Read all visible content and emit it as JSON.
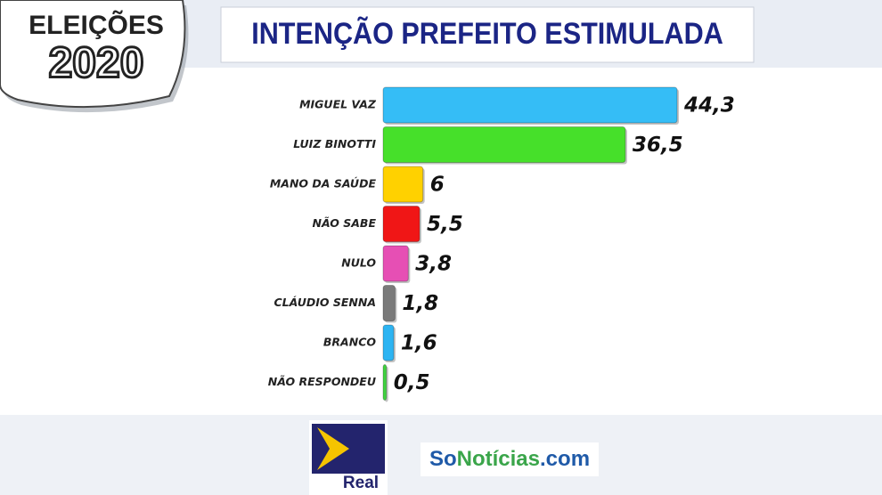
{
  "badge": {
    "line1": "ELEIÇÕES",
    "line2": "2020"
  },
  "logos": {
    "real": "Real",
    "sonoticias": [
      "So",
      "Notícias",
      ".com"
    ]
  },
  "chart_data": {
    "type": "bar",
    "orientation": "horizontal",
    "title": "INTENÇÃO PREFEITO ESTIMULADA",
    "categories": [
      "MIGUEL VAZ",
      "LUIZ BINOTTI",
      "MANO DA SAÚDE",
      "NÃO SABE",
      "NULO",
      "CLÁUDIO SENNA",
      "BRANCO",
      "NÃO RESPONDEU"
    ],
    "values": [
      44.3,
      36.5,
      6,
      5.5,
      3.8,
      1.8,
      1.6,
      0.5
    ],
    "value_labels": [
      "44,3",
      "36,5",
      "6",
      "5,5",
      "3,8",
      "1,8",
      "1,6",
      "0,5"
    ],
    "colors": [
      "#35bdf6",
      "#46e02a",
      "#ffd100",
      "#f01616",
      "#e64fb4",
      "#7a7a7a",
      "#2db4f2",
      "#3fd23f"
    ]
  }
}
